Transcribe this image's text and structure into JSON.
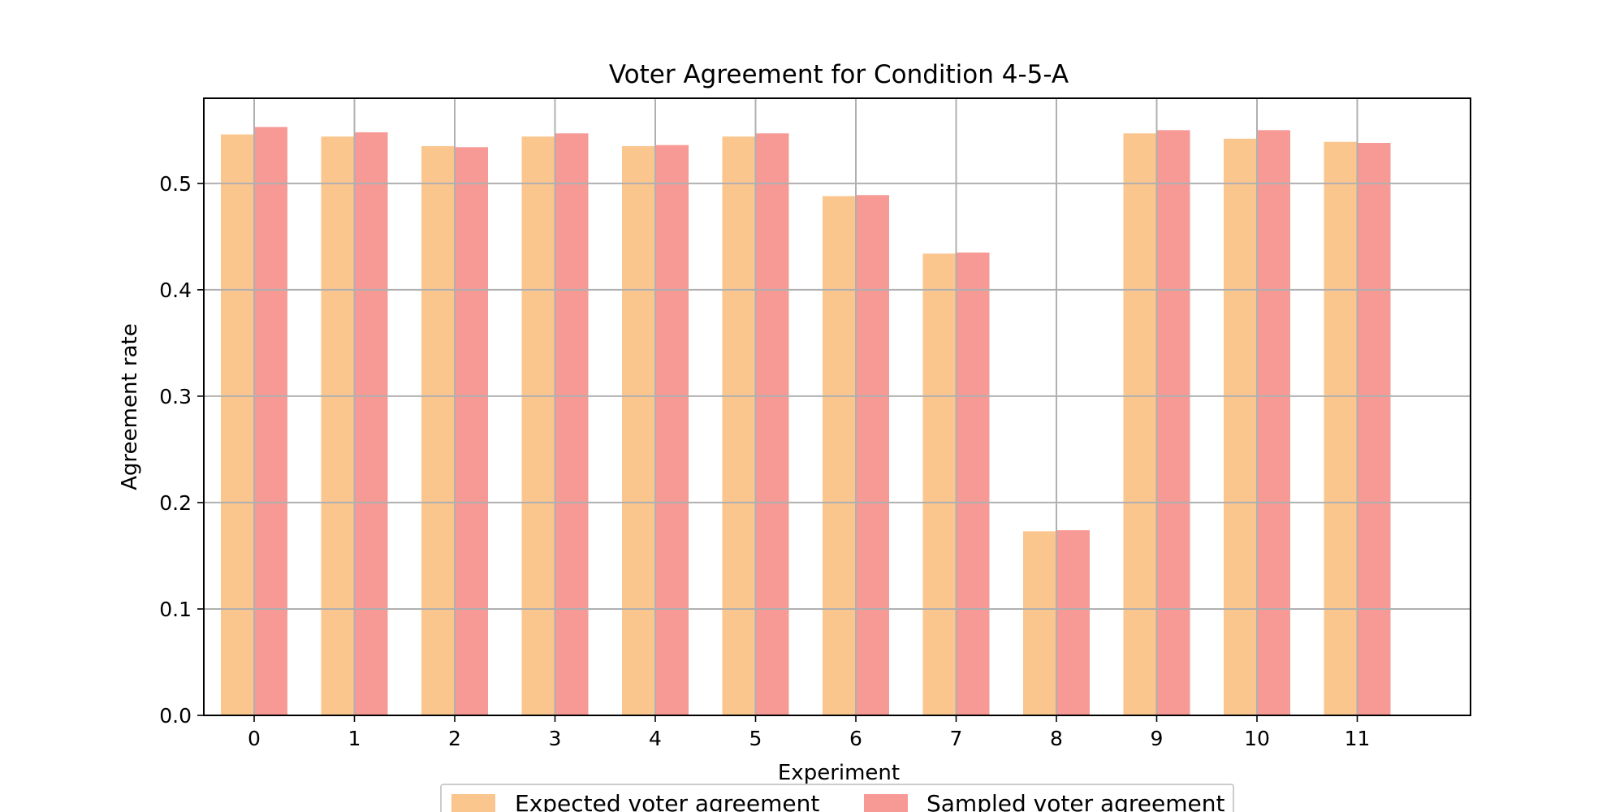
{
  "chart_data": {
    "type": "bar",
    "title": "Voter Agreement for Condition 4-5-A",
    "xlabel": "Experiment",
    "ylabel": "Agreement rate",
    "categories": [
      "0",
      "1",
      "2",
      "3",
      "4",
      "5",
      "6",
      "7",
      "8",
      "9",
      "10",
      "11"
    ],
    "series": [
      {
        "name": "Expected voter agreement",
        "color": "#fbc58e",
        "values": [
          0.546,
          0.544,
          0.535,
          0.544,
          0.535,
          0.544,
          0.488,
          0.434,
          0.173,
          0.547,
          0.542,
          0.539
        ]
      },
      {
        "name": "Sampled voter agreement",
        "color": "#f79994",
        "values": [
          0.553,
          0.548,
          0.534,
          0.547,
          0.536,
          0.547,
          0.489,
          0.435,
          0.174,
          0.55,
          0.55,
          0.538
        ]
      }
    ],
    "ylim": [
      0,
      0.58
    ],
    "yticks": [
      "0.0",
      "0.1",
      "0.2",
      "0.3",
      "0.4",
      "0.5"
    ],
    "grid": true,
    "legend_position": "bottom-center"
  }
}
